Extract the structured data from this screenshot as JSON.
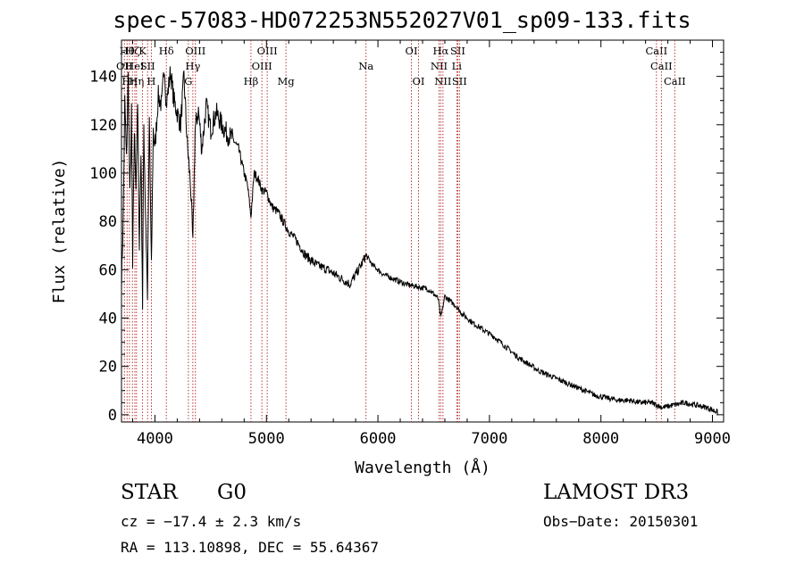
{
  "chart_data": {
    "type": "line",
    "title": "spec-57083-HD072253N552027V01_sp09-133.fits",
    "xlabel": "Wavelength (Å)",
    "ylabel": "Flux (relative)",
    "xlim": [
      3700,
      9100
    ],
    "ylim": [
      -3,
      155
    ],
    "xticks": [
      4000,
      5000,
      6000,
      7000,
      8000,
      9000
    ],
    "xtick_labels": [
      "4000",
      "5000",
      "6000",
      "7000",
      "8000",
      "9000"
    ],
    "yticks": [
      0,
      20,
      40,
      60,
      80,
      100,
      120,
      140
    ],
    "ytick_labels": [
      "0",
      "20",
      "40",
      "60",
      "80",
      "100",
      "120",
      "140"
    ],
    "line_color": "#000000",
    "marker_color": "#b22222",
    "spectrum": {
      "x": [
        3700,
        3715,
        3730,
        3745,
        3760,
        3775,
        3790,
        3800,
        3815,
        3830,
        3845,
        3860,
        3875,
        3889,
        3900,
        3915,
        3933,
        3950,
        3968,
        3985,
        4000,
        4030,
        4060,
        4085,
        4102,
        4120,
        4140,
        4170,
        4200,
        4230,
        4260,
        4290,
        4320,
        4340,
        4360,
        4390,
        4420,
        4460,
        4500,
        4550,
        4600,
        4650,
        4700,
        4750,
        4800,
        4830,
        4861,
        4890,
        4920,
        4960,
        5000,
        5050,
        5100,
        5150,
        5200,
        5270,
        5350,
        5450,
        5550,
        5650,
        5750,
        5800,
        5850,
        5893,
        5950,
        6050,
        6150,
        6250,
        6350,
        6450,
        6500,
        6540,
        6563,
        6600,
        6650,
        6700,
        6750,
        6850,
        6950,
        7050,
        7150,
        7250,
        7350,
        7450,
        7550,
        7650,
        7750,
        7850,
        7950,
        8050,
        8150,
        8250,
        8350,
        8450,
        8550,
        8650,
        8750,
        8850,
        8950,
        9000,
        9050
      ],
      "y": [
        55,
        80,
        130,
        105,
        140,
        90,
        125,
        60,
        118,
        95,
        128,
        70,
        110,
        45,
        120,
        85,
        50,
        122,
        60,
        118,
        110,
        132,
        128,
        145,
        128,
        135,
        142,
        130,
        125,
        120,
        140,
        112,
        95,
        70,
        118,
        126,
        110,
        128,
        118,
        125,
        120,
        116,
        114,
        110,
        100,
        95,
        82,
        100,
        98,
        93,
        92,
        86,
        84,
        80,
        76,
        72,
        66,
        62,
        60,
        57,
        54,
        58,
        62,
        66,
        62,
        58,
        56,
        54,
        53,
        52,
        50,
        48,
        40,
        49,
        47,
        45,
        42,
        38,
        35,
        32,
        28,
        24,
        21,
        18,
        16,
        14,
        12,
        10,
        8,
        7,
        6,
        6,
        5,
        5,
        3,
        4,
        5,
        4,
        3,
        2,
        1
      ]
    },
    "line_markers": [
      {
        "wl": 3726,
        "label": "OII",
        "row": 2
      },
      {
        "wl": 3750,
        "label": "Hθ",
        "row": 1
      },
      {
        "wl": 3771,
        "label": "Hη",
        "row": 3
      },
      {
        "wl": 3798,
        "label": "Hζ",
        "row": 1
      },
      {
        "wl": 3820,
        "label": "HeI",
        "row": 2
      },
      {
        "wl": 3835,
        "label": "Hη",
        "row": 3
      },
      {
        "wl": 3889,
        "label": "K",
        "row": 1
      },
      {
        "wl": 3934,
        "label": "SII",
        "row": 2
      },
      {
        "wl": 3968,
        "label": "H",
        "row": 3
      },
      {
        "wl": 4102,
        "label": "Hδ",
        "row": 1
      },
      {
        "wl": 4300,
        "label": "G",
        "row": 3
      },
      {
        "wl": 4340,
        "label": "Hγ",
        "row": 2
      },
      {
        "wl": 4363,
        "label": "OIII",
        "row": 1
      },
      {
        "wl": 4861,
        "label": "Hβ",
        "row": 3
      },
      {
        "wl": 4959,
        "label": "OIII",
        "row": 2
      },
      {
        "wl": 5007,
        "label": "OIII",
        "row": 1
      },
      {
        "wl": 5175,
        "label": "Mg",
        "row": 3
      },
      {
        "wl": 5893,
        "label": "Na",
        "row": 2
      },
      {
        "wl": 6300,
        "label": "OI",
        "row": 1
      },
      {
        "wl": 6364,
        "label": "OI",
        "row": 3
      },
      {
        "wl": 6548,
        "label": "NII",
        "row": 2
      },
      {
        "wl": 6563,
        "label": "Hα",
        "row": 1
      },
      {
        "wl": 6583,
        "label": "NII",
        "row": 3
      },
      {
        "wl": 6707,
        "label": "Li",
        "row": 2
      },
      {
        "wl": 6716,
        "label": "SII",
        "row": 1
      },
      {
        "wl": 6731,
        "label": "SII",
        "row": 3
      },
      {
        "wl": 8498,
        "label": "CaII",
        "row": 1
      },
      {
        "wl": 8542,
        "label": "CaII",
        "row": 2
      },
      {
        "wl": 8662,
        "label": "CaII",
        "row": 3
      }
    ]
  },
  "info": {
    "class": "STAR",
    "subclass": "G0",
    "survey": "LAMOST DR3",
    "redshift": "cz = −17.4 ± 2.3 km/s",
    "obs_date": "Obs−Date: 20150301",
    "coords": "RA = 113.10898, DEC =  55.64367"
  }
}
